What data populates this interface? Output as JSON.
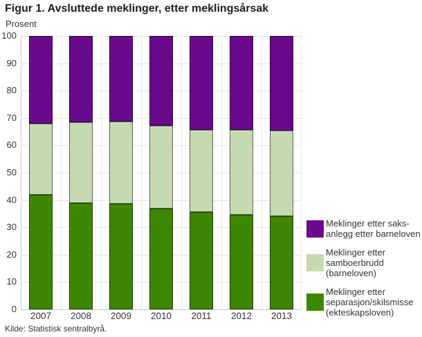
{
  "title": "Figur 1. Avsluttede meklinger, etter meklingsårsak",
  "y_axis_label": "Prosent",
  "source": "Kilde: Statistisk sentralbyrå.",
  "colors": {
    "purple": "#690a8c",
    "light_green": "#c5dab1",
    "dark_green": "#3d8704",
    "gridline": "#e6e6e6",
    "axis_line": "#c9c9c9",
    "bar_outline": "rgba(0,0,0,0.55)",
    "text": "#333333",
    "title_text": "#1c1c1c"
  },
  "chart_data": {
    "type": "bar",
    "stacked": true,
    "title": "Figur 1. Avsluttede meklinger, etter meklingsårsak",
    "xlabel": "",
    "ylabel": "Prosent",
    "ylim": [
      0,
      100
    ],
    "y_tick_step": 10,
    "grid": true,
    "legend_position": "right",
    "categories": [
      "2007",
      "2008",
      "2009",
      "2010",
      "2011",
      "2012",
      "2013"
    ],
    "series": [
      {
        "name": "Meklinger etter saksanlegg etter barneloven",
        "color": "#690a8c",
        "values": [
          32.0,
          31.6,
          31.3,
          32.7,
          34.3,
          34.4,
          34.7
        ]
      },
      {
        "name": "Meklinger etter samboerbrudd (barneloven)",
        "color": "#c5dab1",
        "values": [
          26.0,
          29.4,
          30.1,
          30.4,
          30.2,
          30.9,
          31.3
        ]
      },
      {
        "name": "Meklinger etter separasjon/skilsmisse (ekteskapsloven)",
        "color": "#3d8704",
        "values": [
          42.0,
          39.0,
          38.6,
          36.9,
          35.5,
          34.7,
          34.0
        ]
      }
    ]
  },
  "legend": {
    "items": [
      {
        "color": "#690a8c",
        "label_lines": [
          "Meklinger etter saks-",
          "anlegg etter barneloven"
        ]
      },
      {
        "color": "#c5dab1",
        "label_lines": [
          "Meklinger etter",
          "samboerbrudd",
          "(barneloven)"
        ]
      },
      {
        "color": "#3d8704",
        "label_lines": [
          "Meklinger etter",
          "separasjon/skilsmisse",
          "(ekteskapsloven)"
        ]
      }
    ]
  }
}
